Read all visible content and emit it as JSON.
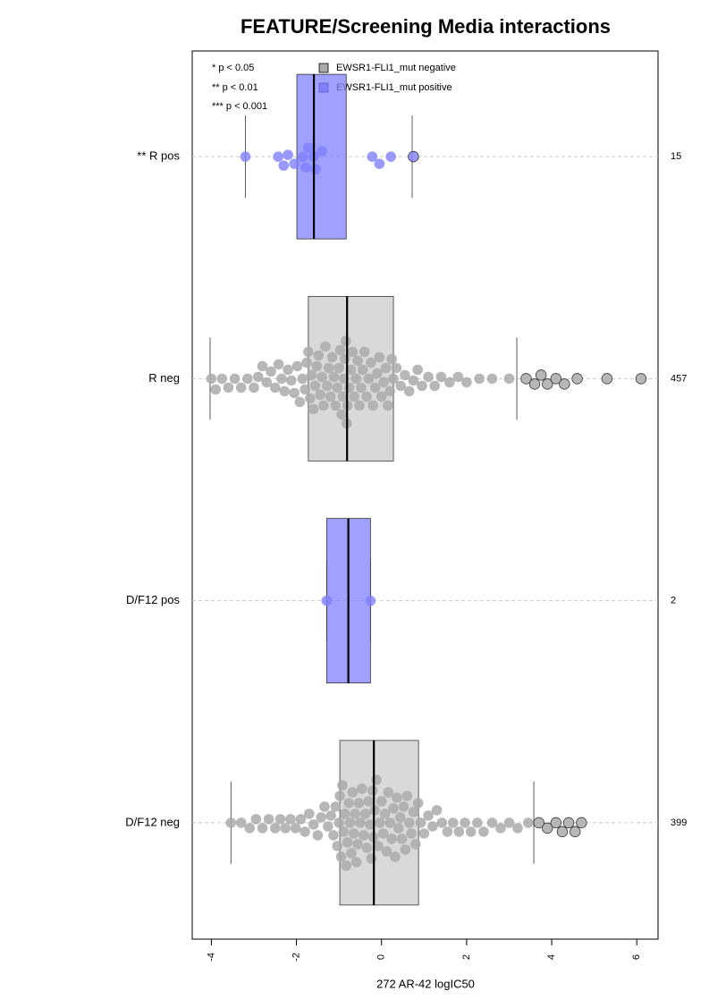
{
  "chart_data": {
    "type": "boxplot",
    "title": "FEATURE/Screening Media interactions",
    "x_label": "272 AR-42 logIC50",
    "xlim": [
      -4.45,
      6.5
    ],
    "xticks": [
      -4,
      -2,
      0,
      2,
      4,
      6
    ],
    "grid": true,
    "annotations": [
      "* p < 0.05",
      "** p < 0.01",
      "*** p < 0.001"
    ],
    "categories": [
      "** R pos",
      "R neg",
      "D/F12 pos",
      "D/F12 neg"
    ],
    "counts": [
      15,
      457,
      2,
      399
    ],
    "series": [
      {
        "name": "EWSR1-FLI1_mut negative",
        "color": "#aaaaaa",
        "boxes": [
          null,
          {
            "whisker_low": -4.03,
            "q1": -1.72,
            "median": -0.81,
            "q3": 0.28,
            "whisker_high": 3.18
          },
          null,
          {
            "whisker_low": -3.54,
            "q1": -0.98,
            "median": -0.18,
            "q3": 0.87,
            "whisker_high": 3.58
          }
        ],
        "points": [
          null,
          [
            -4.0,
            -3.9,
            -3.75,
            -3.6,
            -3.45,
            -3.3,
            -3.15,
            -3.0,
            -2.9,
            -2.8,
            -2.7,
            -2.6,
            -2.5,
            -2.42,
            -2.35,
            -2.28,
            -2.2,
            -2.12,
            -2.05,
            -1.98,
            -1.92,
            -1.86,
            -1.8,
            -1.76,
            -1.72,
            -1.68,
            -1.64,
            -1.6,
            -1.56,
            -1.52,
            -1.48,
            -1.44,
            -1.4,
            -1.36,
            -1.32,
            -1.28,
            -1.24,
            -1.2,
            -1.16,
            -1.12,
            -1.08,
            -1.04,
            -1.0,
            -0.97,
            -0.94,
            -0.91,
            -0.88,
            -0.86,
            -0.84,
            -0.82,
            -0.8,
            -0.76,
            -0.72,
            -0.68,
            -0.64,
            -0.6,
            -0.56,
            -0.52,
            -0.48,
            -0.44,
            -0.4,
            -0.35,
            -0.3,
            -0.25,
            -0.2,
            -0.15,
            -0.1,
            -0.05,
            0.0,
            0.05,
            0.1,
            0.15,
            0.2,
            0.24,
            0.28,
            0.35,
            0.45,
            0.55,
            0.65,
            0.75,
            0.85,
            0.95,
            1.1,
            1.25,
            1.4,
            1.6,
            1.8,
            2.0,
            2.3,
            2.6,
            3.0,
            3.4,
            3.6,
            3.75,
            3.9,
            4.1,
            4.3,
            4.6,
            5.3,
            6.1
          ],
          null,
          [
            -3.54,
            -3.3,
            -3.1,
            -2.95,
            -2.8,
            -2.65,
            -2.5,
            -2.38,
            -2.26,
            -2.14,
            -2.02,
            -1.9,
            -1.8,
            -1.7,
            -1.6,
            -1.5,
            -1.42,
            -1.34,
            -1.26,
            -1.19,
            -1.13,
            -1.08,
            -1.04,
            -1.0,
            -0.98,
            -0.95,
            -0.92,
            -0.89,
            -0.86,
            -0.83,
            -0.8,
            -0.77,
            -0.74,
            -0.71,
            -0.68,
            -0.65,
            -0.62,
            -0.59,
            -0.56,
            -0.53,
            -0.5,
            -0.46,
            -0.42,
            -0.38,
            -0.34,
            -0.3,
            -0.27,
            -0.24,
            -0.21,
            -0.19,
            -0.16,
            -0.12,
            -0.08,
            -0.04,
            0.0,
            0.04,
            0.08,
            0.12,
            0.16,
            0.2,
            0.24,
            0.28,
            0.32,
            0.36,
            0.4,
            0.44,
            0.48,
            0.52,
            0.56,
            0.6,
            0.65,
            0.7,
            0.75,
            0.8,
            0.86,
            0.92,
            1.0,
            1.1,
            1.2,
            1.3,
            1.42,
            1.55,
            1.68,
            1.82,
            1.96,
            2.1,
            2.25,
            2.4,
            2.6,
            2.8,
            3.0,
            3.2,
            3.45,
            3.7,
            3.9,
            4.1,
            4.25,
            4.4,
            4.55,
            4.7
          ]
        ]
      },
      {
        "name": "EWSR1-FLI1_mut positive",
        "color": "#8080ff",
        "boxes": [
          {
            "whisker_low": -3.2,
            "q1": -1.99,
            "median": -1.59,
            "q3": -0.83,
            "whisker_high": 0.72
          },
          null,
          {
            "whisker_low": -1.29,
            "q1": -1.29,
            "median": -0.78,
            "q3": -0.26,
            "whisker_high": -0.26
          },
          null
        ],
        "points": [
          [
            -3.2,
            -2.43,
            -2.3,
            -2.2,
            -2.05,
            -1.85,
            -1.78,
            -1.72,
            -1.6,
            -1.55,
            -1.4,
            -0.22,
            -0.05,
            0.22,
            0.75
          ],
          null,
          [
            -1.29,
            -0.26
          ],
          null
        ]
      }
    ]
  }
}
